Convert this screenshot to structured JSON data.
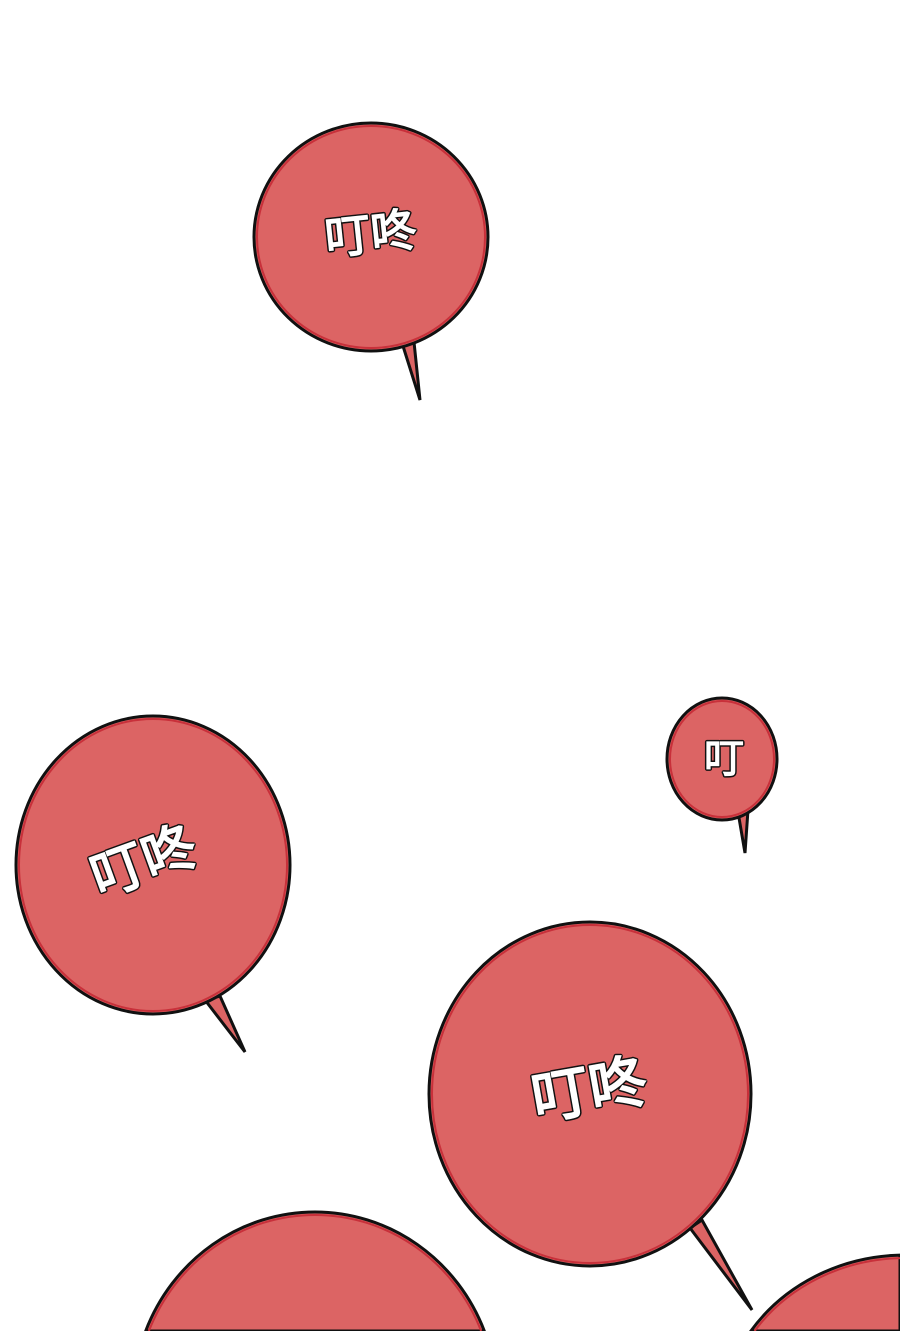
{
  "panel": {
    "background_color": "#ffffff",
    "bubble_fill_color": "#dc6464",
    "bubble_outline_color": "#111111",
    "bubbles": [
      {
        "text": "叮咚"
      },
      {
        "text": "叮咚"
      },
      {
        "text": "叮"
      },
      {
        "text": "叮咚"
      }
    ]
  }
}
